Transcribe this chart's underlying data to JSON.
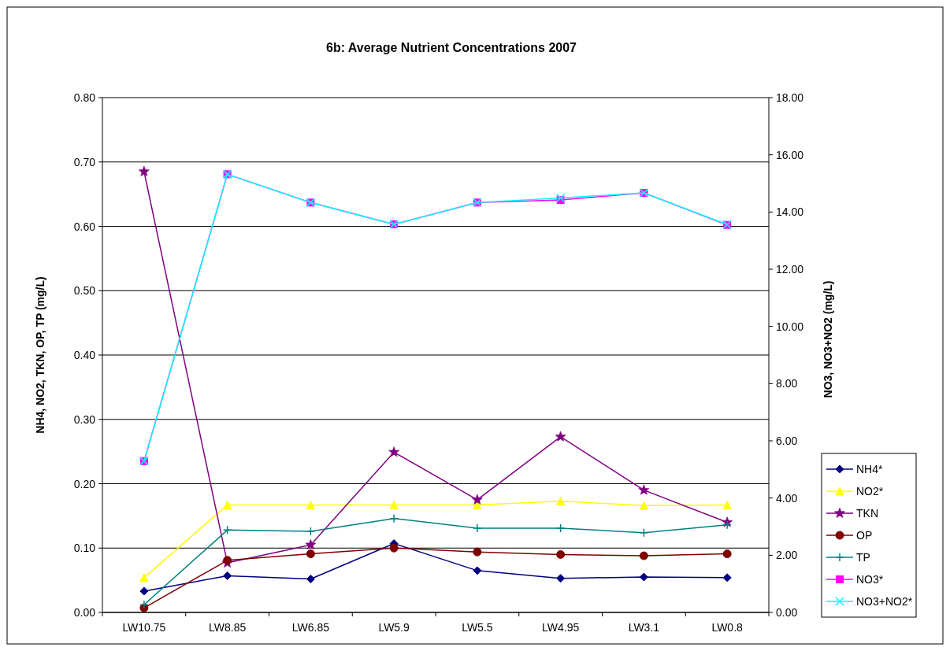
{
  "chart_data": {
    "type": "line",
    "title": "6b: Average Nutrient Concentrations 2007",
    "ylabel": "NH4, NO2, TKN, OP, TP (mg/L)",
    "y2label": "NO3, NO3+NO2 (mg/L)",
    "categories": [
      "LW10.75",
      "LW8.85",
      "LW6.85",
      "LW5.9",
      "LW5.5",
      "LW4.95",
      "LW3.1",
      "LW0.8"
    ],
    "ylim": [
      0,
      0.8
    ],
    "yticks": [
      {
        "value": 0,
        "label": "0.00"
      },
      {
        "value": 0.1,
        "label": "0.10"
      },
      {
        "value": 0.2,
        "label": "0.20"
      },
      {
        "value": 0.3,
        "label": "0.30"
      },
      {
        "value": 0.4,
        "label": "0.40"
      },
      {
        "value": 0.5,
        "label": "0.50"
      },
      {
        "value": 0.6,
        "label": "0.60"
      },
      {
        "value": 0.7,
        "label": "0.70"
      },
      {
        "value": 0.8,
        "label": "0.80"
      }
    ],
    "y2lim": [
      0,
      18
    ],
    "y2ticks": [
      {
        "value": 0,
        "label": "0.00"
      },
      {
        "value": 2,
        "label": "2.00"
      },
      {
        "value": 4,
        "label": "4.00"
      },
      {
        "value": 6,
        "label": "6.00"
      },
      {
        "value": 8,
        "label": "8.00"
      },
      {
        "value": 10,
        "label": "10.00"
      },
      {
        "value": 12,
        "label": "12.00"
      },
      {
        "value": 14,
        "label": "14.00"
      },
      {
        "value": 16,
        "label": "16.00"
      },
      {
        "value": 18,
        "label": "18.00"
      }
    ],
    "grid": "y",
    "legend": "right",
    "series": [
      {
        "name": "NH4*",
        "color": "#000080",
        "marker": "diamond",
        "values": [
          0.033,
          0.057,
          0.052,
          0.107,
          0.065,
          0.053,
          0.055,
          0.054
        ]
      },
      {
        "name": "NO2*",
        "color": "#ffff00",
        "marker": "triangle",
        "values": [
          0.054,
          0.167,
          0.167,
          0.167,
          0.167,
          0.173,
          0.166,
          0.167
        ]
      },
      {
        "name": "TKN",
        "color": "#800080",
        "marker": "star",
        "values": [
          0.685,
          0.077,
          0.105,
          0.249,
          0.175,
          0.273,
          0.19,
          0.14
        ]
      },
      {
        "name": "OP",
        "color": "#800000",
        "marker": "circle",
        "values": [
          0.007,
          0.081,
          0.091,
          0.1,
          0.094,
          0.09,
          0.088,
          0.091
        ]
      },
      {
        "name": "TP",
        "color": "#008080",
        "marker": "cross",
        "values": [
          0.012,
          0.128,
          0.126,
          0.146,
          0.131,
          0.131,
          0.124,
          0.136
        ]
      },
      {
        "name": "NO3*",
        "color": "#ff00ff",
        "marker": "square",
        "axis": "y2",
        "values": [
          5.29,
          15.32,
          14.33,
          13.57,
          14.33,
          14.42,
          14.67,
          13.55
        ]
      },
      {
        "name": "NO3+NO2*",
        "color": "#00ffff",
        "marker": "x",
        "axis": "y2",
        "values": [
          5.29,
          15.32,
          14.33,
          13.57,
          14.33,
          14.49,
          14.67,
          13.56
        ]
      }
    ]
  }
}
